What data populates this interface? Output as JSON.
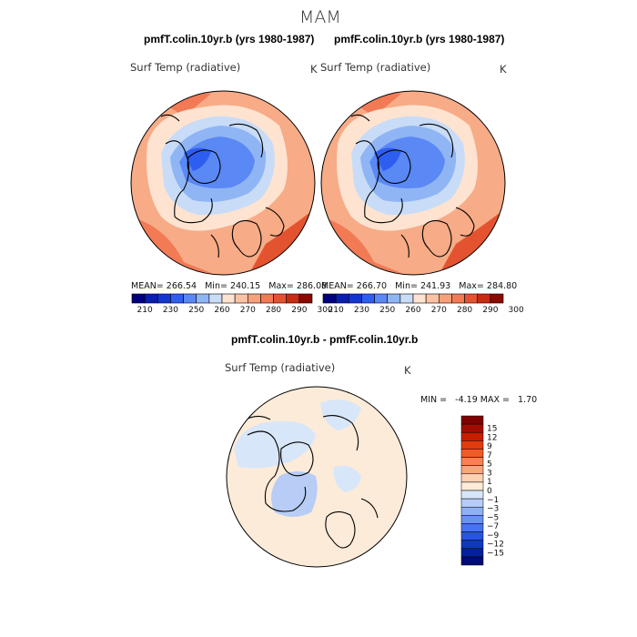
{
  "suptitle": "MAM",
  "panels": [
    {
      "title": "pmfT.colin.10yr.b (yrs 1980-1987)",
      "variable": "Surf Temp (radiative)",
      "units": "K",
      "stats": {
        "mean_label": "MEAN=",
        "mean": "266.54",
        "min_label": "Min=",
        "min": "240.15",
        "max_label": "Max=",
        "max": "286.08"
      }
    },
    {
      "title": "pmfF.colin.10yr.b (yrs 1980-1987)",
      "variable": "Surf Temp (radiative)",
      "units": "K",
      "stats": {
        "mean_label": "MEAN=",
        "mean": "266.70",
        "min_label": "Min=",
        "min": "241.93",
        "max_label": "Max=",
        "max": "284.80"
      }
    },
    {
      "title": "pmfT.colin.10yr.b - pmfF.colin.10yr.b",
      "variable": "Surf Temp (radiative)",
      "units": "K",
      "stats": {
        "min_label": "MIN =",
        "min": "-4.19",
        "max_label": "MAX =",
        "max": "1.70"
      }
    }
  ],
  "abs_colorbar": {
    "ticks": [
      "210",
      "230",
      "250",
      "260",
      "270",
      "280",
      "290",
      "300"
    ],
    "colors": [
      "#00007f",
      "#0a1fb0",
      "#1436d0",
      "#2e5ef0",
      "#5a88f5",
      "#90b5f5",
      "#c8dcf7",
      "#fde3d0",
      "#fbc3a3",
      "#f9a07b",
      "#f27a55",
      "#e4532f",
      "#c72d12",
      "#8a0a00"
    ]
  },
  "diff_colorbar": {
    "ticks": [
      "15",
      "12",
      "9",
      "7",
      "5",
      "3",
      "1",
      "0",
      "−1",
      "−3",
      "−5",
      "−7",
      "−9",
      "−12",
      "−15"
    ],
    "colors_top_down": [
      "#7f0000",
      "#a30c00",
      "#c81e00",
      "#e33b0f",
      "#f45a25",
      "#f98150",
      "#fba47e",
      "#fdd2b4",
      "#fdebd9",
      "#d8e6f9",
      "#b7cdf6",
      "#8fb1f4",
      "#6a93f1",
      "#4674ec",
      "#2755de",
      "#0f38c0",
      "#05219a",
      "#000c75"
    ]
  },
  "chart_data": [
    {
      "type": "heatmap",
      "title": "pmfT.colin.10yr.b (yrs 1980-1987)",
      "projection": "north polar stereographic",
      "variable": "Surf Temp (radiative)",
      "units": "K",
      "mean": 266.54,
      "min": 240.15,
      "max": 286.08,
      "levels": [
        210,
        230,
        250,
        260,
        270,
        280,
        290,
        300
      ]
    },
    {
      "type": "heatmap",
      "title": "pmfF.colin.10yr.b (yrs 1980-1987)",
      "projection": "north polar stereographic",
      "variable": "Surf Temp (radiative)",
      "units": "K",
      "mean": 266.7,
      "min": 241.93,
      "max": 284.8,
      "levels": [
        210,
        230,
        250,
        260,
        270,
        280,
        290,
        300
      ]
    },
    {
      "type": "heatmap",
      "title": "pmfT.colin.10yr.b - pmfF.colin.10yr.b",
      "projection": "north polar stereographic",
      "variable": "Surf Temp (radiative)",
      "units": "K",
      "min": -4.19,
      "max": 1.7,
      "levels": [
        -15,
        -12,
        -9,
        -7,
        -5,
        -3,
        -1,
        0,
        1,
        3,
        5,
        7,
        9,
        12,
        15
      ]
    }
  ]
}
